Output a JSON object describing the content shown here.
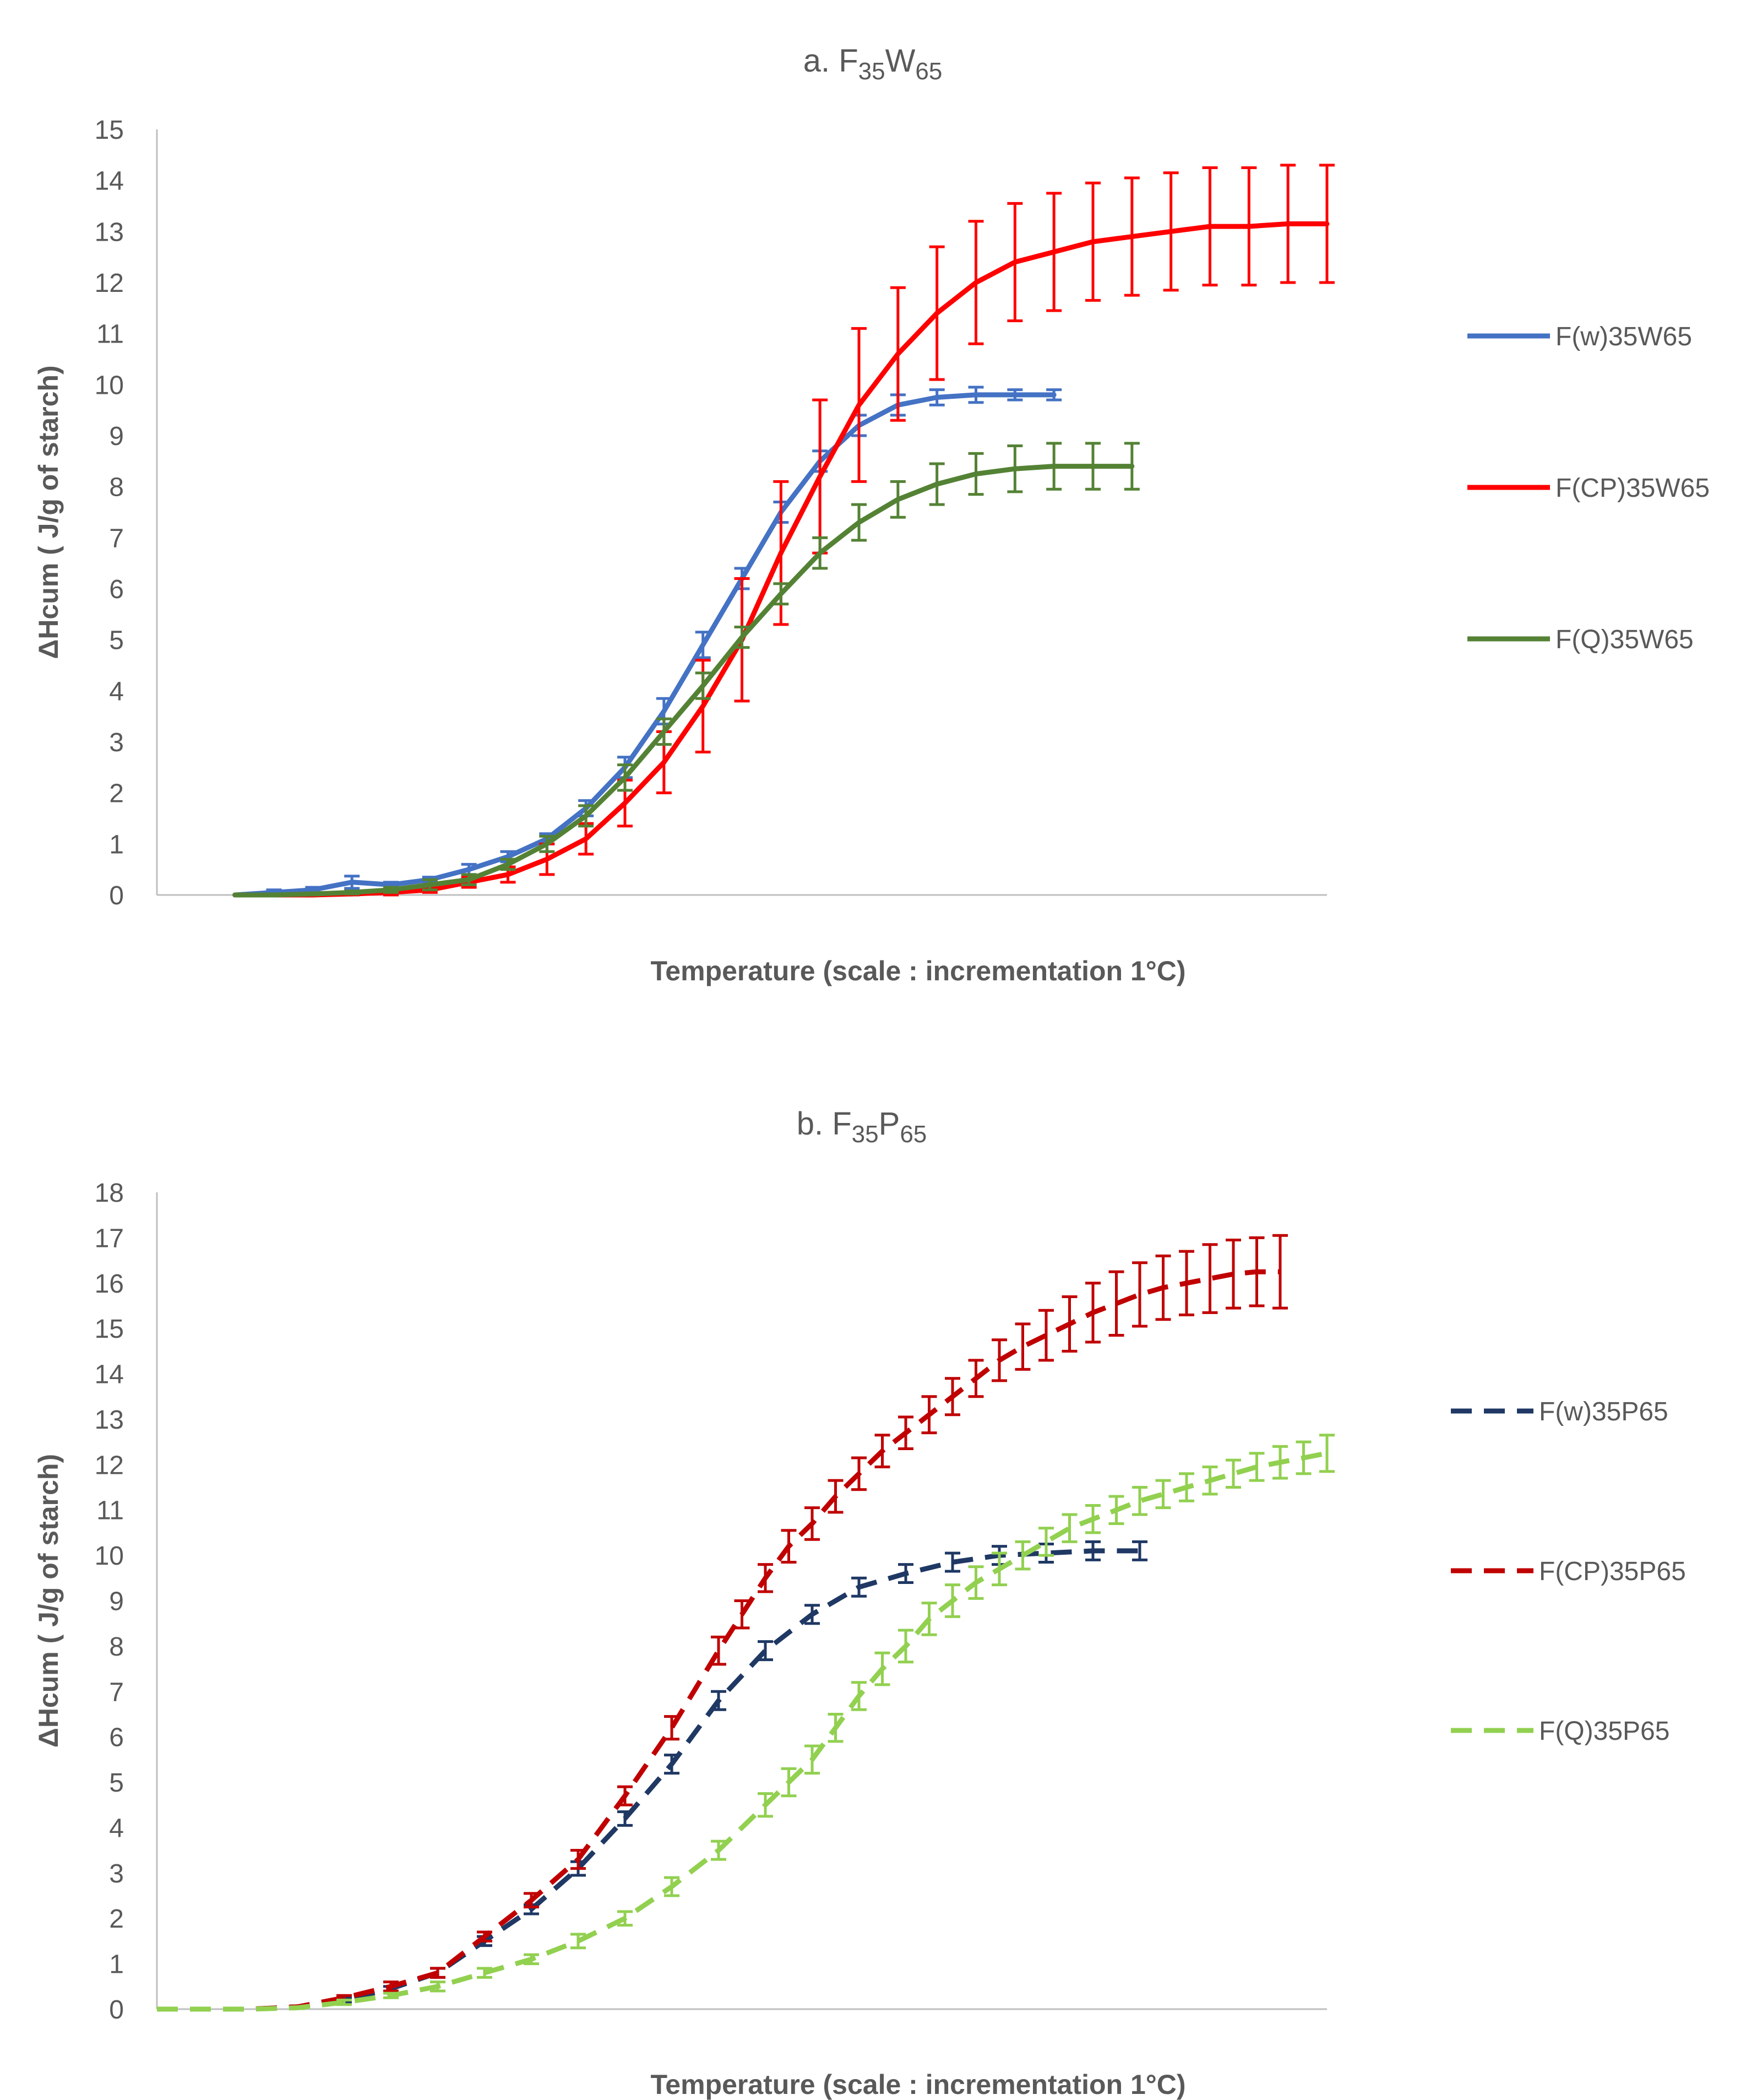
{
  "chart_data": [
    {
      "type": "line",
      "title": {
        "prefix": "a. ",
        "parts": [
          [
            "F",
            ""
          ],
          [
            "35",
            "sub"
          ],
          [
            "W",
            ""
          ],
          [
            "65",
            "sub"
          ]
        ]
      },
      "xlabel": "Temperature (scale : incrementation 1°C)",
      "ylabel": "ΔHcum ( J/g of starch)",
      "ylim": [
        0,
        15
      ],
      "yticks": [
        0,
        1,
        2,
        3,
        4,
        5,
        6,
        7,
        8,
        9,
        10,
        11,
        12,
        13,
        14,
        15
      ],
      "xlim": [
        0,
        30
      ],
      "line_style": "solid",
      "legend_position": "right",
      "series": [
        {
          "name": "F(w)35W65",
          "color": "#4472C4",
          "x": [
            2,
            3,
            4,
            5,
            6,
            7,
            8,
            9,
            10,
            11,
            12,
            13,
            14,
            15,
            16,
            17,
            18,
            19,
            20,
            21,
            22,
            23
          ],
          "values": [
            0.0,
            0.05,
            0.1,
            0.25,
            0.2,
            0.3,
            0.5,
            0.75,
            1.1,
            1.7,
            2.5,
            3.6,
            4.9,
            6.2,
            7.5,
            8.5,
            9.2,
            9.6,
            9.75,
            9.8,
            9.8,
            9.8
          ],
          "errors": [
            0.0,
            0.05,
            0.05,
            0.12,
            0.05,
            0.05,
            0.1,
            0.1,
            0.1,
            0.15,
            0.2,
            0.25,
            0.25,
            0.2,
            0.2,
            0.2,
            0.2,
            0.2,
            0.15,
            0.15,
            0.1,
            0.1
          ]
        },
        {
          "name": "F(CP)35W65",
          "color": "#FF0000",
          "x": [
            2,
            3,
            4,
            5,
            6,
            7,
            8,
            9,
            10,
            11,
            12,
            13,
            14,
            15,
            16,
            17,
            18,
            19,
            20,
            21,
            22,
            23,
            24,
            25,
            26,
            27,
            28,
            29,
            30
          ],
          "values": [
            0.0,
            0.0,
            0.0,
            0.02,
            0.05,
            0.1,
            0.25,
            0.4,
            0.7,
            1.1,
            1.8,
            2.6,
            3.7,
            5.0,
            6.7,
            8.2,
            9.6,
            10.6,
            11.4,
            12.0,
            12.4,
            12.6,
            12.8,
            12.9,
            13.0,
            13.1,
            13.1,
            13.15,
            13.15
          ],
          "errors": [
            0.0,
            0.0,
            0.0,
            0.02,
            0.05,
            0.05,
            0.1,
            0.15,
            0.3,
            0.3,
            0.45,
            0.6,
            0.9,
            1.2,
            1.4,
            1.5,
            1.5,
            1.3,
            1.3,
            1.2,
            1.15,
            1.15,
            1.15,
            1.15,
            1.15,
            1.15,
            1.15,
            1.15,
            1.15
          ]
        },
        {
          "name": "F(Q)35W65",
          "color": "#548235",
          "x": [
            2,
            3,
            4,
            5,
            6,
            7,
            8,
            9,
            10,
            11,
            12,
            13,
            14,
            15,
            16,
            17,
            18,
            19,
            20,
            21,
            22,
            23,
            24,
            25
          ],
          "values": [
            0.0,
            0.0,
            0.02,
            0.05,
            0.1,
            0.2,
            0.3,
            0.6,
            1.0,
            1.55,
            2.3,
            3.2,
            4.1,
            5.05,
            5.9,
            6.7,
            7.3,
            7.75,
            8.05,
            8.25,
            8.35,
            8.4,
            8.4,
            8.4
          ],
          "errors": [
            0.0,
            0.0,
            0.02,
            0.03,
            0.05,
            0.1,
            0.1,
            0.1,
            0.15,
            0.2,
            0.25,
            0.25,
            0.25,
            0.2,
            0.2,
            0.3,
            0.35,
            0.35,
            0.4,
            0.4,
            0.45,
            0.45,
            0.45,
            0.45
          ]
        }
      ]
    },
    {
      "type": "line",
      "title": {
        "prefix": "b. ",
        "parts": [
          [
            "F",
            ""
          ],
          [
            "35",
            "sub"
          ],
          [
            "P",
            ""
          ],
          [
            "65",
            "sub"
          ]
        ]
      },
      "xlabel": "Temperature (scale : incrementation 1°C)",
      "ylabel": "ΔHcum ( J/g of starch)",
      "ylim": [
        0,
        18
      ],
      "yticks": [
        0,
        1,
        2,
        3,
        4,
        5,
        6,
        7,
        8,
        9,
        10,
        11,
        12,
        13,
        14,
        15,
        16,
        17,
        18
      ],
      "xlim": [
        0,
        50
      ],
      "line_style": "dashed",
      "legend_position": "right",
      "series": [
        {
          "name": "F(w)35P65",
          "color": "#1F3864",
          "x": [
            0,
            2,
            4,
            6,
            8,
            10,
            12,
            14,
            16,
            18,
            20,
            22,
            24,
            26,
            28,
            30,
            32,
            34,
            36,
            38,
            40,
            42
          ],
          "values": [
            0.0,
            0.0,
            0.0,
            0.05,
            0.2,
            0.45,
            0.8,
            1.5,
            2.2,
            3.1,
            4.2,
            5.4,
            6.8,
            7.9,
            8.7,
            9.3,
            9.6,
            9.85,
            10.0,
            10.05,
            10.1,
            10.1
          ],
          "errors": [
            0.0,
            0.0,
            0.0,
            0.02,
            0.05,
            0.05,
            0.1,
            0.1,
            0.1,
            0.15,
            0.15,
            0.2,
            0.2,
            0.2,
            0.2,
            0.2,
            0.2,
            0.2,
            0.2,
            0.2,
            0.2,
            0.2
          ]
        },
        {
          "name": "F(CP)35P65",
          "color": "#C00000",
          "x": [
            0,
            2,
            4,
            6,
            8,
            10,
            12,
            14,
            16,
            18,
            20,
            22,
            24,
            25,
            26,
            27,
            28,
            29,
            30,
            31,
            32,
            33,
            34,
            35,
            36,
            37,
            38,
            39,
            40,
            41,
            42,
            43,
            44,
            45,
            46,
            47,
            48
          ],
          "values": [
            0.0,
            0.0,
            0.0,
            0.05,
            0.25,
            0.5,
            0.8,
            1.6,
            2.4,
            3.3,
            4.7,
            6.2,
            7.9,
            8.7,
            9.5,
            10.2,
            10.7,
            11.3,
            11.8,
            12.3,
            12.7,
            13.1,
            13.5,
            13.9,
            14.3,
            14.6,
            14.85,
            15.1,
            15.35,
            15.55,
            15.75,
            15.9,
            16.0,
            16.1,
            16.2,
            16.25,
            16.25
          ],
          "errors": [
            0.0,
            0.0,
            0.0,
            0.02,
            0.05,
            0.1,
            0.1,
            0.1,
            0.15,
            0.2,
            0.2,
            0.25,
            0.3,
            0.3,
            0.3,
            0.35,
            0.35,
            0.35,
            0.35,
            0.35,
            0.35,
            0.4,
            0.4,
            0.4,
            0.45,
            0.5,
            0.55,
            0.6,
            0.65,
            0.7,
            0.7,
            0.7,
            0.7,
            0.75,
            0.75,
            0.75,
            0.8
          ]
        },
        {
          "name": "F(Q)35P65",
          "color": "#92D050",
          "x": [
            0,
            2,
            4,
            6,
            8,
            10,
            12,
            14,
            16,
            18,
            20,
            22,
            24,
            26,
            27,
            28,
            29,
            30,
            31,
            32,
            33,
            34,
            35,
            36,
            37,
            38,
            39,
            40,
            41,
            42,
            43,
            44,
            45,
            46,
            47,
            48,
            49,
            50
          ],
          "values": [
            0.0,
            0.0,
            0.0,
            0.03,
            0.15,
            0.3,
            0.5,
            0.8,
            1.1,
            1.5,
            2.0,
            2.7,
            3.5,
            4.5,
            5.0,
            5.5,
            6.2,
            6.9,
            7.5,
            8.0,
            8.6,
            9.0,
            9.4,
            9.7,
            10.0,
            10.3,
            10.6,
            10.8,
            11.0,
            11.2,
            11.35,
            11.5,
            11.65,
            11.8,
            11.95,
            12.05,
            12.15,
            12.25
          ],
          "errors": [
            0.0,
            0.0,
            0.0,
            0.02,
            0.05,
            0.05,
            0.1,
            0.1,
            0.1,
            0.15,
            0.15,
            0.2,
            0.2,
            0.25,
            0.3,
            0.3,
            0.3,
            0.3,
            0.35,
            0.35,
            0.35,
            0.35,
            0.35,
            0.35,
            0.3,
            0.3,
            0.3,
            0.3,
            0.3,
            0.3,
            0.3,
            0.3,
            0.3,
            0.3,
            0.3,
            0.35,
            0.35,
            0.4
          ]
        }
      ]
    }
  ]
}
